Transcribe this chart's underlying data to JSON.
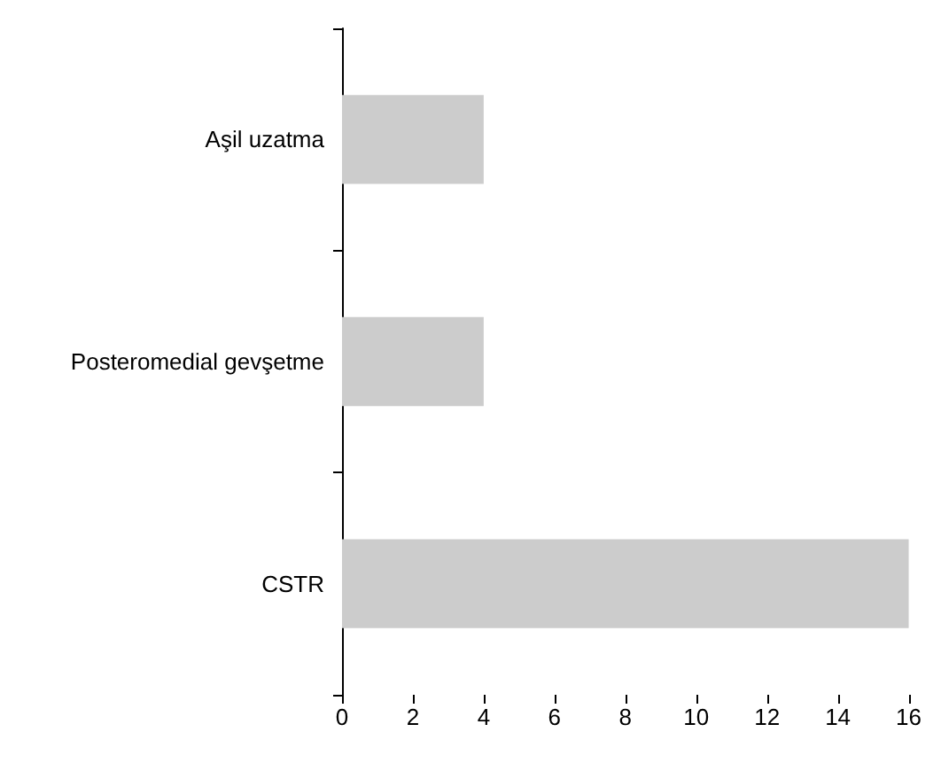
{
  "chart_data": {
    "type": "bar",
    "orientation": "horizontal",
    "categories": [
      "Aşil uzatma",
      "Posteromedial gevşetme",
      "CSTR"
    ],
    "values": [
      4,
      4,
      16
    ],
    "color": "#cccccc",
    "xlim": [
      0,
      16
    ],
    "xticks": [
      0,
      2,
      4,
      6,
      8,
      10,
      12,
      14,
      16
    ],
    "grid": false
  }
}
